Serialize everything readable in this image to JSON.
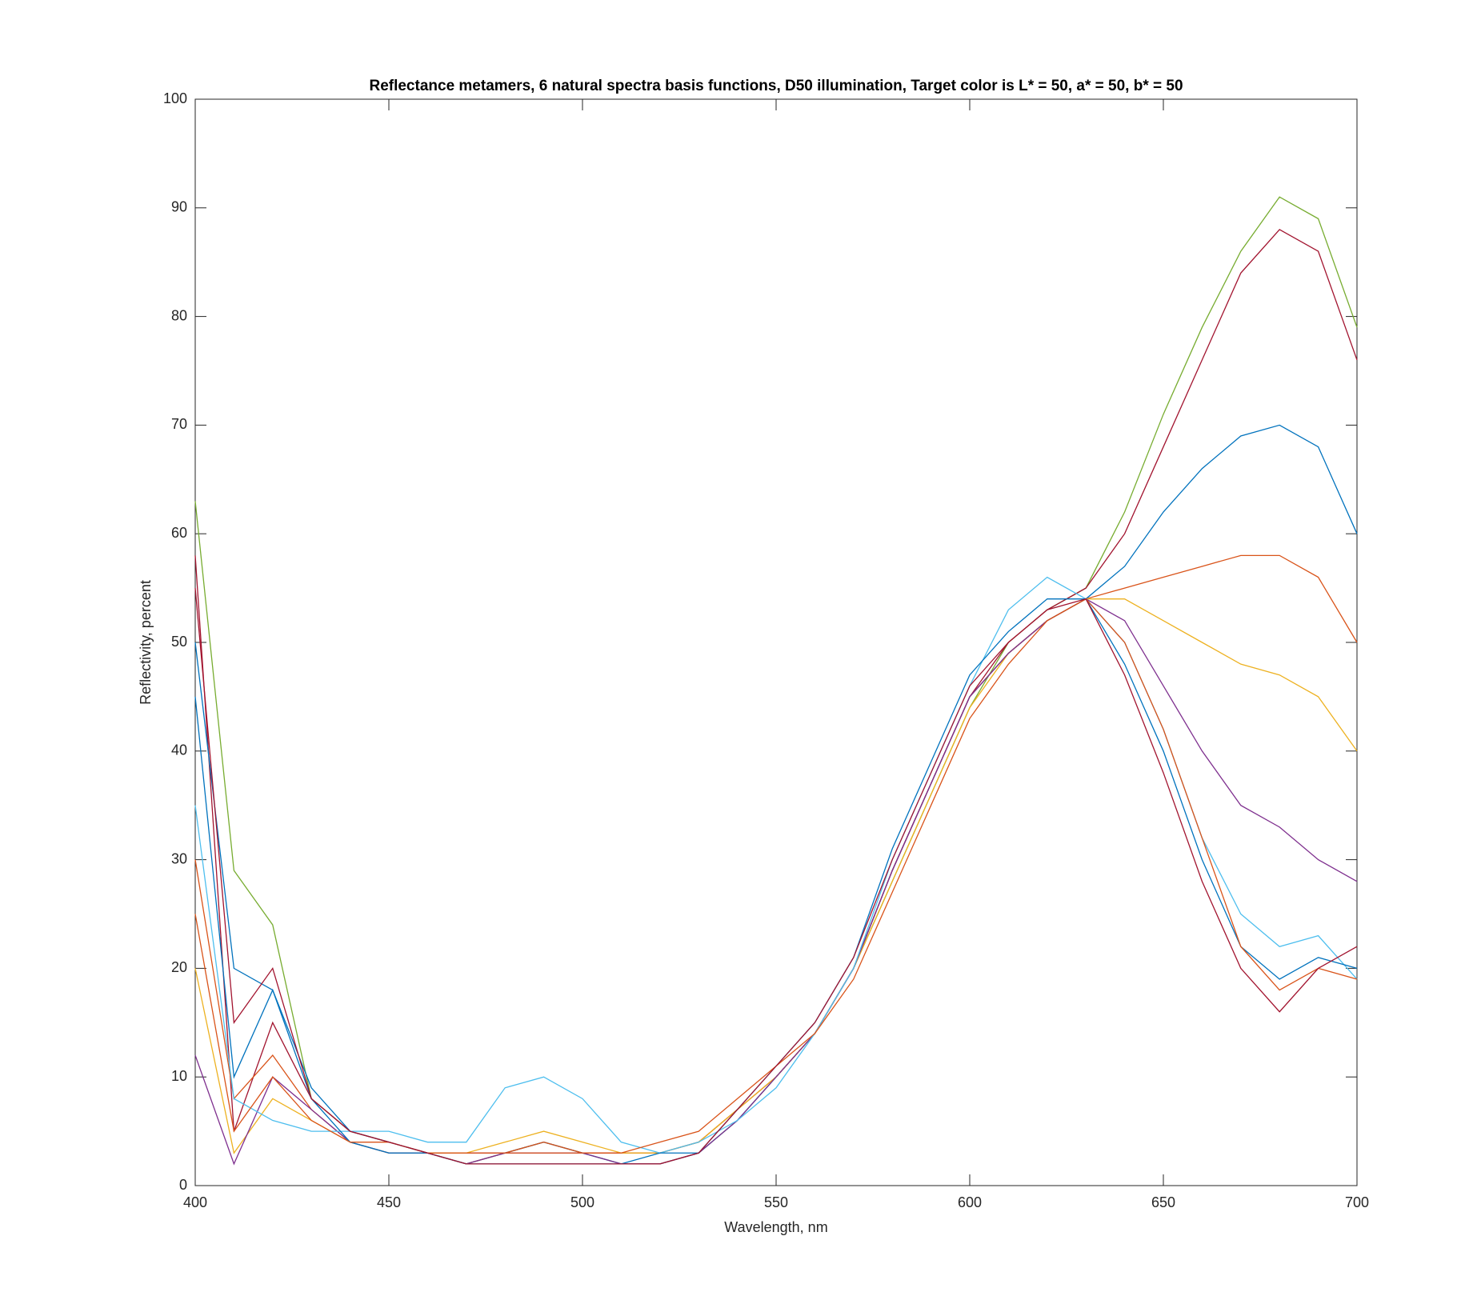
{
  "chart_data": {
    "type": "line",
    "title": "Reflectance metamers, 6 natural spectra basis functions, D50 illumination, Target color is L* = 50, a* = 50, b* = 50",
    "x_label": "Wavelength, nm",
    "y_label": "Reflectivity, percent",
    "x": [
      400,
      410,
      420,
      430,
      440,
      450,
      460,
      470,
      480,
      490,
      500,
      510,
      520,
      530,
      540,
      550,
      560,
      570,
      580,
      590,
      600,
      610,
      620,
      630,
      640,
      650,
      660,
      670,
      680,
      690,
      700
    ],
    "xlim": [
      400,
      700
    ],
    "xticks": [
      400,
      450,
      500,
      550,
      600,
      650,
      700
    ],
    "ylim": [
      0,
      100
    ],
    "yticks": [
      0,
      10,
      20,
      30,
      40,
      50,
      60,
      70,
      80,
      90,
      100
    ],
    "grid": false,
    "series": [
      {
        "color": "#77AC30",
        "values": [
          63,
          29,
          24,
          8,
          5,
          4,
          3,
          2,
          3,
          4,
          3,
          2,
          2,
          3,
          6,
          10,
          14,
          20,
          28,
          36,
          44,
          50,
          53,
          55,
          62,
          71,
          79,
          86,
          91,
          89,
          79
        ]
      },
      {
        "color": "#A2142F",
        "values": [
          58,
          5,
          15,
          8,
          5,
          4,
          3,
          3,
          3,
          4,
          3,
          3,
          3,
          4,
          7,
          10,
          14,
          20,
          29,
          37,
          45,
          50,
          53,
          55,
          60,
          68,
          76,
          84,
          88,
          86,
          76
        ]
      },
      {
        "color": "#0072BD",
        "values": [
          45,
          10,
          18,
          9,
          5,
          4,
          3,
          2,
          3,
          4,
          3,
          2,
          2,
          3,
          6,
          10,
          14,
          20,
          29,
          37,
          45,
          49,
          52,
          54,
          57,
          62,
          66,
          69,
          70,
          68,
          60
        ]
      },
      {
        "color": "#D95319",
        "values": [
          30,
          8,
          12,
          7,
          4,
          3,
          3,
          2,
          3,
          4,
          3,
          3,
          3,
          4,
          7,
          10,
          14,
          20,
          29,
          37,
          45,
          49,
          52,
          54,
          55,
          56,
          57,
          58,
          58,
          56,
          50
        ]
      },
      {
        "color": "#EDB120",
        "values": [
          20,
          3,
          8,
          6,
          4,
          3,
          3,
          3,
          4,
          5,
          4,
          3,
          3,
          4,
          7,
          10,
          14,
          20,
          28,
          36,
          44,
          49,
          52,
          54,
          54,
          52,
          50,
          48,
          47,
          45,
          40
        ]
      },
      {
        "color": "#7E2F8E",
        "values": [
          12,
          2,
          10,
          7,
          4,
          3,
          3,
          2,
          3,
          3,
          3,
          2,
          2,
          3,
          6,
          10,
          14,
          20,
          29,
          37,
          45,
          49,
          52,
          54,
          52,
          46,
          40,
          35,
          33,
          30,
          28
        ]
      },
      {
        "color": "#4DBEEE",
        "values": [
          35,
          8,
          6,
          5,
          5,
          5,
          4,
          4,
          9,
          10,
          8,
          4,
          3,
          4,
          6,
          9,
          14,
          20,
          30,
          38,
          46,
          53,
          56,
          54,
          50,
          42,
          32,
          25,
          22,
          23,
          19
        ]
      },
      {
        "color": "#0072BD",
        "values": [
          50,
          20,
          18,
          8,
          4,
          3,
          3,
          2,
          2,
          2,
          2,
          2,
          3,
          3,
          7,
          11,
          15,
          21,
          31,
          39,
          47,
          51,
          54,
          54,
          48,
          40,
          30,
          22,
          19,
          21,
          20
        ]
      },
      {
        "color": "#D95319",
        "values": [
          25,
          5,
          10,
          6,
          4,
          4,
          3,
          3,
          3,
          3,
          3,
          3,
          4,
          5,
          8,
          11,
          14,
          19,
          27,
          35,
          43,
          48,
          52,
          54,
          50,
          42,
          32,
          22,
          18,
          20,
          19
        ]
      },
      {
        "color": "#A2142F",
        "values": [
          55,
          15,
          20,
          8,
          5,
          4,
          3,
          2,
          2,
          2,
          2,
          2,
          2,
          3,
          7,
          11,
          15,
          21,
          30,
          38,
          46,
          50,
          53,
          54,
          47,
          38,
          28,
          20,
          16,
          20,
          22
        ]
      }
    ]
  }
}
